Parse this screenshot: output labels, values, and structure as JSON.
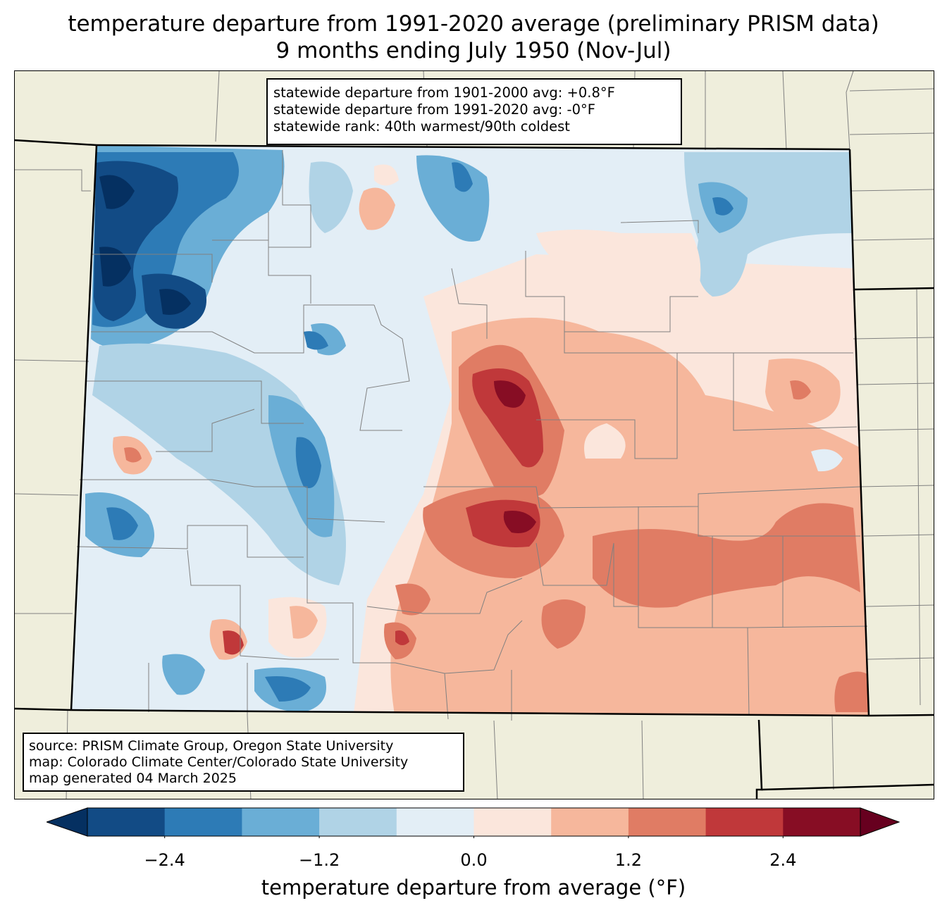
{
  "title": {
    "line1": "temperature departure from 1991-2020 average (preliminary PRISM data)",
    "line2": "9 months ending July 1950 (Nov-Jul)"
  },
  "stats": {
    "departure_1901_2000": "statewide departure from 1901-2000 avg: +0.8°F",
    "departure_1991_2020": "statewide departure from 1991-2020 avg: -0°F",
    "rank": "statewide rank: 40th warmest/90th coldest"
  },
  "source": {
    "line1": "source: PRISM Climate Group, Oregon State University",
    "line2": "map: Colorado Climate Center/Colorado State University",
    "line3": "map generated 04 March 2025"
  },
  "colorbar": {
    "label": "temperature departure from average (°F)",
    "ticks": [
      "−2.4",
      "−1.2",
      "0.0",
      "1.2",
      "2.4"
    ],
    "tick_values": [
      -2.4,
      -1.2,
      0.0,
      1.2,
      2.4
    ],
    "levels": [
      -3.0,
      -2.4,
      -1.8,
      -1.2,
      -0.6,
      0.0,
      0.6,
      1.2,
      1.8,
      2.4,
      3.0
    ],
    "colors": [
      "#124b85",
      "#2d7bb6",
      "#6aaed6",
      "#b0d3e6",
      "#e3eef6",
      "#fbe6dc",
      "#f6b79c",
      "#e07c64",
      "#c0383a",
      "#870d24"
    ],
    "extend_low_color": "#053061",
    "extend_high_color": "#67001f"
  },
  "map_colors": {
    "land": "#efeedc",
    "county_lines": "#808080",
    "state_lines": "#000000"
  }
}
